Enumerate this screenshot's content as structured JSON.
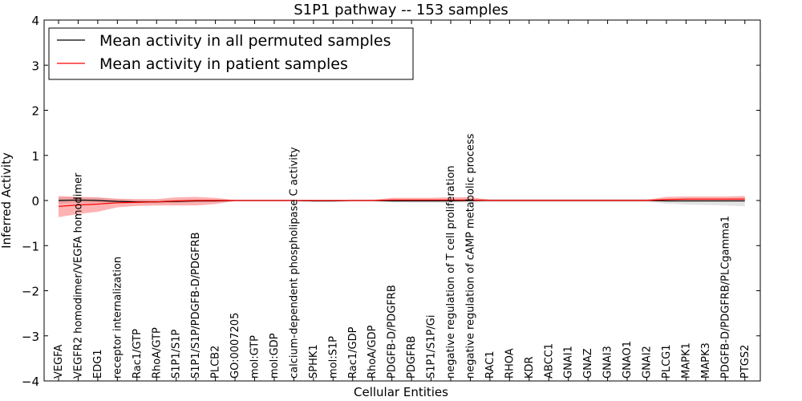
{
  "chart_data": {
    "type": "line",
    "title": "S1P1 pathway -- 153 samples",
    "xlabel": "Cellular Entities",
    "ylabel": "Inferred Activity",
    "ylim": [
      -4,
      4
    ],
    "yticks": [
      4,
      3,
      2,
      1,
      0,
      -1,
      -2,
      -3,
      -4
    ],
    "ytick_labels": [
      "4",
      "3",
      "2",
      "1",
      "0",
      "−1",
      "−2",
      "−3",
      "−4"
    ],
    "grid": false,
    "legend_position": "top-left",
    "categories": [
      "VEGFA",
      "VEGFR2 homodimer/VEGFA homodimer",
      "EDG1",
      "receptor internalization",
      "Rac1/GTP",
      "RhoA/GTP",
      "S1P1/S1P",
      "S1P1/S1P/PDGFB-D/PDGFRB",
      "PLCB2",
      "GO:0007205",
      "mol:GTP",
      "mol:GDP",
      "calcium-dependent phospholipase C activity",
      "SPHK1",
      "mol:S1P",
      "Rac1/GDP",
      "RhoA/GDP",
      "PDGFB-D/PDGFRB",
      "PDGFRB",
      "S1P1/S1P/Gi",
      "negative regulation of T cell proliferation",
      "negative regulation of cAMP metabolic process",
      "RAC1",
      "RHOA",
      "KDR",
      "ABCC1",
      "GNAI1",
      "GNAZ",
      "GNAI3",
      "GNAO1",
      "GNAI2",
      "PLCG1",
      "MAPK1",
      "MAPK3",
      "PDGFB-D/PDGFRB/PLCgamma1",
      "PTGS2"
    ],
    "series": [
      {
        "name": "Mean activity in all permuted samples",
        "color": "#000000",
        "band_color": "#b0b0b0",
        "values": [
          0.0,
          0.01,
          0.0,
          -0.02,
          -0.03,
          -0.03,
          -0.02,
          -0.01,
          -0.01,
          0.0,
          0.0,
          0.0,
          0.0,
          -0.01,
          -0.01,
          0.0,
          0.0,
          -0.01,
          -0.01,
          -0.01,
          -0.01,
          0.0,
          0.0,
          0.0,
          0.0,
          0.0,
          0.0,
          0.0,
          0.0,
          0.0,
          0.0,
          -0.01,
          -0.01,
          -0.01,
          -0.01,
          -0.01
        ],
        "lower": [
          -0.07,
          -0.05,
          -0.05,
          -0.06,
          -0.06,
          -0.06,
          -0.05,
          -0.04,
          -0.03,
          -0.02,
          -0.02,
          -0.02,
          -0.02,
          -0.03,
          -0.03,
          -0.02,
          -0.02,
          -0.04,
          -0.05,
          -0.05,
          -0.05,
          -0.04,
          -0.03,
          -0.03,
          -0.03,
          -0.03,
          -0.03,
          -0.03,
          -0.03,
          -0.03,
          -0.03,
          -0.07,
          -0.09,
          -0.1,
          -0.11,
          -0.13
        ],
        "upper": [
          0.07,
          0.07,
          0.06,
          0.03,
          0.01,
          0.01,
          0.02,
          0.02,
          0.02,
          0.02,
          0.02,
          0.02,
          0.02,
          0.01,
          0.01,
          0.02,
          0.02,
          0.03,
          0.03,
          0.03,
          0.03,
          0.03,
          0.03,
          0.03,
          0.03,
          0.03,
          0.03,
          0.03,
          0.03,
          0.03,
          0.03,
          0.04,
          0.05,
          0.05,
          0.05,
          0.06
        ]
      },
      {
        "name": "Mean activity in patient samples",
        "color": "#ff0000",
        "band_color": "#ff0000",
        "values": [
          -0.13,
          -0.1,
          -0.08,
          -0.05,
          -0.04,
          -0.03,
          -0.01,
          0.0,
          0.0,
          0.0,
          0.0,
          0.0,
          0.0,
          0.0,
          0.0,
          0.0,
          0.0,
          0.01,
          0.01,
          0.01,
          0.01,
          0.01,
          0.0,
          0.0,
          0.0,
          0.0,
          0.0,
          0.0,
          0.0,
          0.0,
          0.0,
          0.02,
          0.03,
          0.03,
          0.03,
          0.03
        ],
        "lower": [
          -0.37,
          -0.3,
          -0.25,
          -0.15,
          -0.12,
          -0.11,
          -0.11,
          -0.11,
          -0.08,
          -0.01,
          -0.01,
          -0.01,
          -0.01,
          -0.01,
          -0.01,
          -0.01,
          -0.01,
          -0.02,
          -0.02,
          -0.02,
          -0.02,
          -0.02,
          -0.01,
          -0.01,
          -0.01,
          -0.01,
          -0.01,
          -0.01,
          -0.01,
          -0.01,
          -0.01,
          -0.01,
          -0.01,
          -0.01,
          -0.01,
          -0.01
        ],
        "upper": [
          0.1,
          0.08,
          0.07,
          0.04,
          0.03,
          0.03,
          0.07,
          0.08,
          0.06,
          0.01,
          0.01,
          0.01,
          0.01,
          0.01,
          0.01,
          0.01,
          0.01,
          0.06,
          0.06,
          0.06,
          0.07,
          0.07,
          0.02,
          0.02,
          0.02,
          0.02,
          0.02,
          0.02,
          0.02,
          0.02,
          0.02,
          0.08,
          0.09,
          0.09,
          0.09,
          0.1
        ]
      }
    ]
  }
}
